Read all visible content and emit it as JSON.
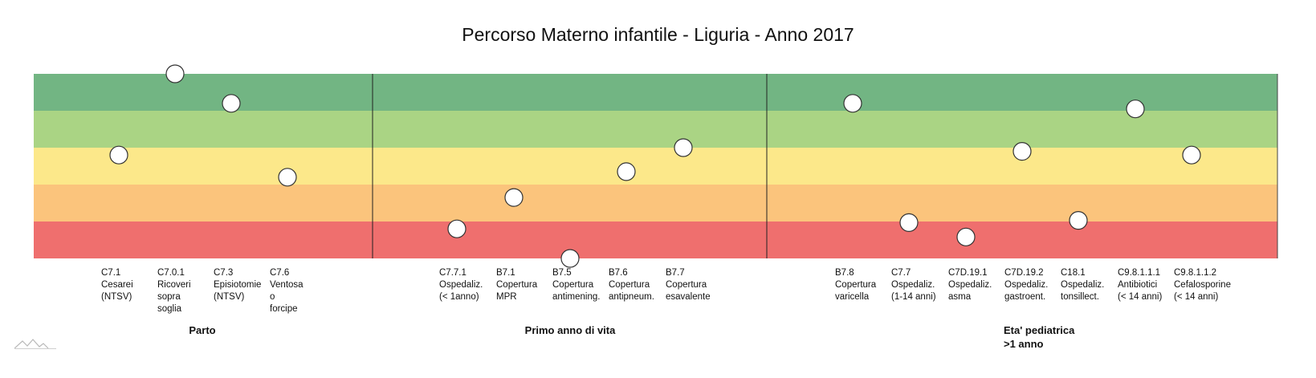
{
  "chart_data": {
    "type": "scatter",
    "title": "Percorso Materno infantile - Liguria - Anno 2017",
    "bands_colors": [
      "#72b583",
      "#aad484",
      "#fce88a",
      "#fbc47c",
      "#ef6f6e"
    ],
    "ylim": [
      0,
      5
    ],
    "groups": [
      {
        "name": "Parto",
        "indicators": [
          {
            "code": "C7.1",
            "name": "Cesarei\n(NTSV)",
            "y": 2.8
          },
          {
            "code": "C7.0.1",
            "name": "Ricoveri\nsopra\nsoglia",
            "y": 5.0
          },
          {
            "code": "C7.3",
            "name": "Episiotomie\n(NTSV)",
            "y": 4.2
          },
          {
            "code": "C7.6",
            "name": "Ventosa\no\nforcipe",
            "y": 2.2
          }
        ]
      },
      {
        "name": "Primo anno di vita",
        "indicators": [
          {
            "code": "C7.7.1",
            "name": "Ospedaliz.\n(< 1anno)",
            "y": 0.8
          },
          {
            "code": "B7.1",
            "name": "Copertura\nMPR",
            "y": 1.65
          },
          {
            "code": "B7.5",
            "name": "Copertura\nantimening.",
            "y": 0.0
          },
          {
            "code": "B7.6",
            "name": "Copertura\nantipneum.",
            "y": 2.35
          },
          {
            "code": "B7.7",
            "name": "Copertura\nesavalente",
            "y": 3.0
          }
        ]
      },
      {
        "name": "Eta' pediatrica\n>1 anno",
        "indicators": [
          {
            "code": "B7.8",
            "name": "Copertura\nvaricella",
            "y": 4.2
          },
          {
            "code": "C7.7",
            "name": "Ospedaliz.\n(1-14 anni)",
            "y": 0.97
          },
          {
            "code": "C7D.19.1",
            "name": "Ospedaliz.\nasma",
            "y": 0.58
          },
          {
            "code": "C7D.19.2",
            "name": "Ospedaliz.\ngastroent.",
            "y": 2.9
          },
          {
            "code": "C18.1",
            "name": "Ospedaliz.\ntonsillect.",
            "y": 1.03
          },
          {
            "code": "C9.8.1.1.1",
            "name": "Antibiotici\n(< 14 anni)",
            "y": 4.05
          },
          {
            "code": "C9.8.1.1.2",
            "name": "Cefalosporine\n(< 14 anni)",
            "y": 2.8
          }
        ]
      }
    ]
  },
  "icons": {
    "logo": "mountains-logo-icon"
  }
}
